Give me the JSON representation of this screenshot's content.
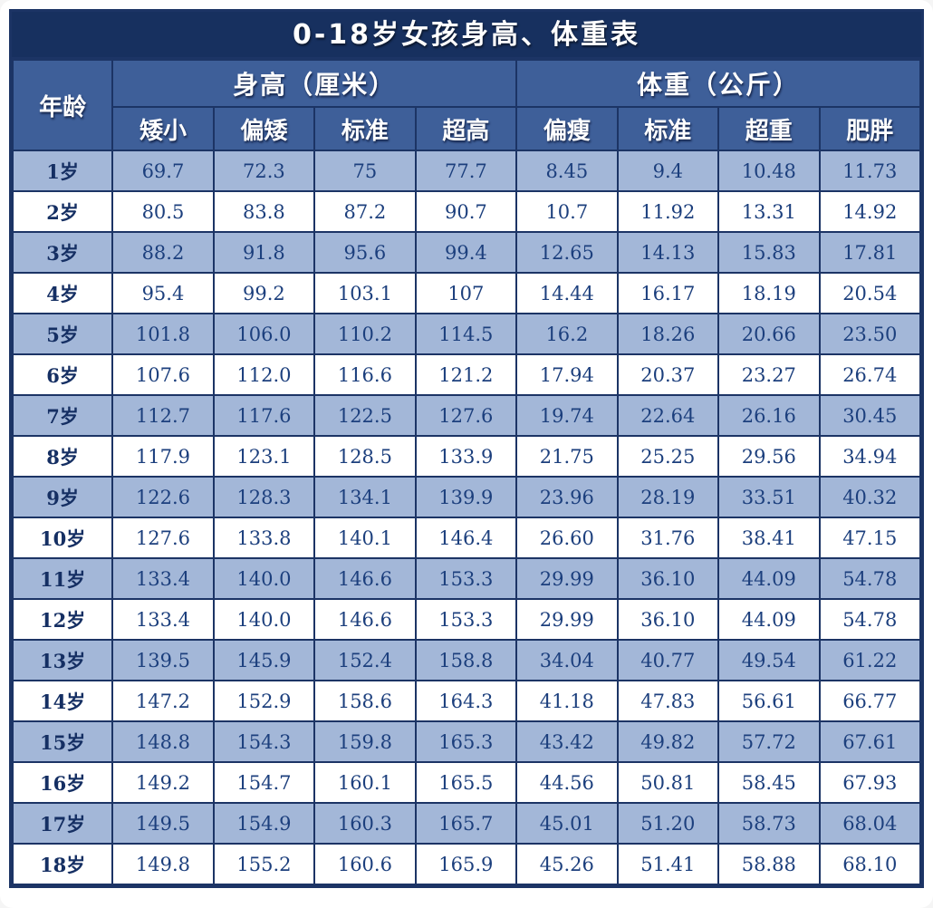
{
  "chart_data": {
    "type": "table",
    "title": "0-18岁女孩身高、体重表",
    "age_column_header": "年龄",
    "column_groups": [
      {
        "label": "身高（厘米）",
        "columns": [
          "矮小",
          "偏矮",
          "标准",
          "超高"
        ]
      },
      {
        "label": "体重（公斤）",
        "columns": [
          "偏瘦",
          "标准",
          "超重",
          "肥胖"
        ]
      }
    ],
    "rows": [
      {
        "age": "1岁",
        "values": [
          "69.7",
          "72.3",
          "75",
          "77.7",
          "8.45",
          "9.4",
          "10.48",
          "11.73"
        ]
      },
      {
        "age": "2岁",
        "values": [
          "80.5",
          "83.8",
          "87.2",
          "90.7",
          "10.7",
          "11.92",
          "13.31",
          "14.92"
        ]
      },
      {
        "age": "3岁",
        "values": [
          "88.2",
          "91.8",
          "95.6",
          "99.4",
          "12.65",
          "14.13",
          "15.83",
          "17.81"
        ]
      },
      {
        "age": "4岁",
        "values": [
          "95.4",
          "99.2",
          "103.1",
          "107",
          "14.44",
          "16.17",
          "18.19",
          "20.54"
        ]
      },
      {
        "age": "5岁",
        "values": [
          "101.8",
          "106.0",
          "110.2",
          "114.5",
          "16.2",
          "18.26",
          "20.66",
          "23.50"
        ]
      },
      {
        "age": "6岁",
        "values": [
          "107.6",
          "112.0",
          "116.6",
          "121.2",
          "17.94",
          "20.37",
          "23.27",
          "26.74"
        ]
      },
      {
        "age": "7岁",
        "values": [
          "112.7",
          "117.6",
          "122.5",
          "127.6",
          "19.74",
          "22.64",
          "26.16",
          "30.45"
        ]
      },
      {
        "age": "8岁",
        "values": [
          "117.9",
          "123.1",
          "128.5",
          "133.9",
          "21.75",
          "25.25",
          "29.56",
          "34.94"
        ]
      },
      {
        "age": "9岁",
        "values": [
          "122.6",
          "128.3",
          "134.1",
          "139.9",
          "23.96",
          "28.19",
          "33.51",
          "40.32"
        ]
      },
      {
        "age": "10岁",
        "values": [
          "127.6",
          "133.8",
          "140.1",
          "146.4",
          "26.60",
          "31.76",
          "38.41",
          "47.15"
        ]
      },
      {
        "age": "11岁",
        "values": [
          "133.4",
          "140.0",
          "146.6",
          "153.3",
          "29.99",
          "36.10",
          "44.09",
          "54.78"
        ]
      },
      {
        "age": "12岁",
        "values": [
          "133.4",
          "140.0",
          "146.6",
          "153.3",
          "29.99",
          "36.10",
          "44.09",
          "54.78"
        ]
      },
      {
        "age": "13岁",
        "values": [
          "139.5",
          "145.9",
          "152.4",
          "158.8",
          "34.04",
          "40.77",
          "49.54",
          "61.22"
        ]
      },
      {
        "age": "14岁",
        "values": [
          "147.2",
          "152.9",
          "158.6",
          "164.3",
          "41.18",
          "47.83",
          "56.61",
          "66.77"
        ]
      },
      {
        "age": "15岁",
        "values": [
          "148.8",
          "154.3",
          "159.8",
          "165.3",
          "43.42",
          "49.82",
          "57.72",
          "67.61"
        ]
      },
      {
        "age": "16岁",
        "values": [
          "149.2",
          "154.7",
          "160.1",
          "165.5",
          "44.56",
          "50.81",
          "58.45",
          "67.93"
        ]
      },
      {
        "age": "17岁",
        "values": [
          "149.5",
          "154.9",
          "160.3",
          "165.7",
          "45.01",
          "51.20",
          "58.73",
          "68.04"
        ]
      },
      {
        "age": "18岁",
        "values": [
          "149.8",
          "155.2",
          "160.6",
          "165.9",
          "45.26",
          "51.41",
          "58.88",
          "68.10"
        ]
      }
    ]
  },
  "colors": {
    "title_bg": "#17305f",
    "header_bg": "#3e5f99",
    "row_alt_bg": "#a3b7d8",
    "row_bg": "#ffffff",
    "border": "#1c3465",
    "body_text": "#1c3f7d",
    "header_text": "#ffffff"
  }
}
